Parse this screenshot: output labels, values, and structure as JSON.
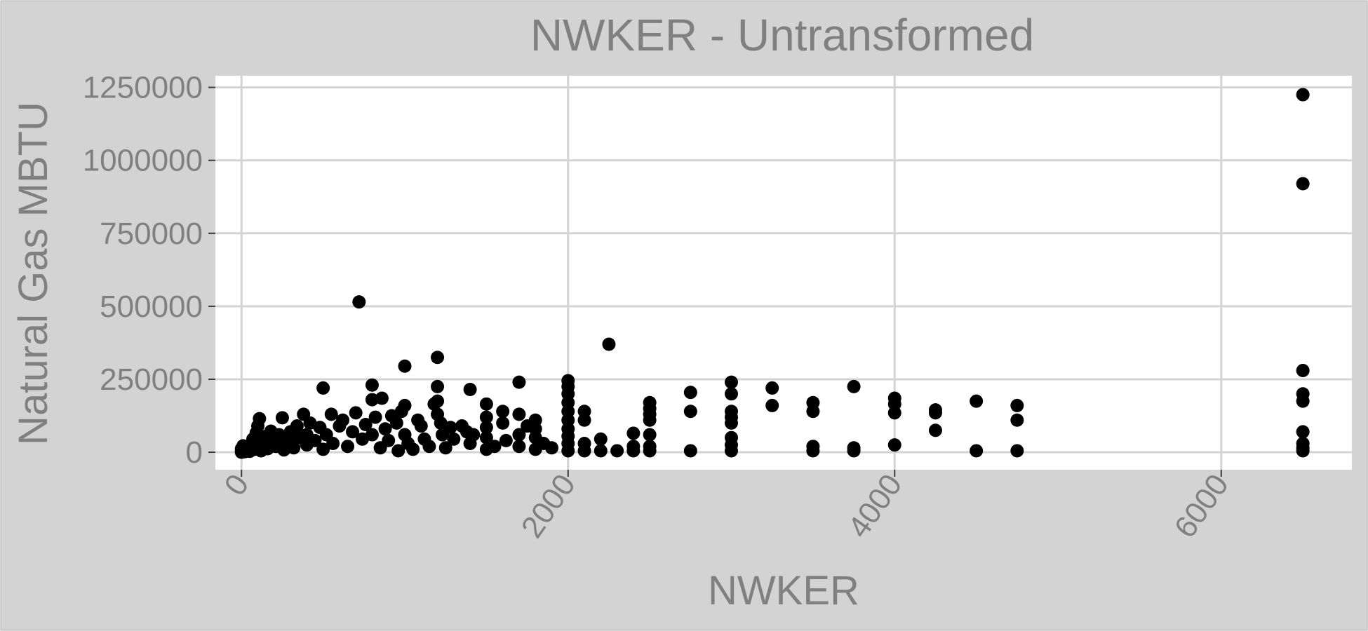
{
  "chart_data": {
    "type": "scatter",
    "title": "NWKER - Untransformed",
    "xlabel": "NWKER",
    "ylabel": "Natural Gas MBTU",
    "xlim": [
      -160,
      6800
    ],
    "ylim": [
      -60000,
      1290000
    ],
    "xticks": [
      0,
      2000,
      4000,
      6000
    ],
    "xtick_labels": [
      "0",
      "2000",
      "4000",
      "6000"
    ],
    "yticks": [
      0,
      250000,
      500000,
      750000,
      1000000,
      1250000
    ],
    "ytick_labels": [
      "0",
      "250000",
      "500000",
      "750000",
      "1000000",
      "1250000"
    ],
    "grid": true,
    "legend": "none",
    "point_color": "#000000",
    "points": [
      [
        0,
        0
      ],
      [
        0,
        5000
      ],
      [
        0,
        12000
      ],
      [
        10,
        22000
      ],
      [
        20,
        2000
      ],
      [
        30,
        8000
      ],
      [
        40,
        15000
      ],
      [
        50,
        3000
      ],
      [
        60,
        28000
      ],
      [
        70,
        45000
      ],
      [
        80,
        10000
      ],
      [
        90,
        66000
      ],
      [
        100,
        25000
      ],
      [
        100,
        90000
      ],
      [
        110,
        115000
      ],
      [
        120,
        5000
      ],
      [
        130,
        35000
      ],
      [
        150,
        55000
      ],
      [
        160,
        12000
      ],
      [
        180,
        72000
      ],
      [
        200,
        40000
      ],
      [
        210,
        20000
      ],
      [
        230,
        60000
      ],
      [
        250,
        118000
      ],
      [
        260,
        8000
      ],
      [
        280,
        35000
      ],
      [
        300,
        70000
      ],
      [
        320,
        15000
      ],
      [
        340,
        90000
      ],
      [
        350,
        50000
      ],
      [
        380,
        130000
      ],
      [
        400,
        25000
      ],
      [
        400,
        60000
      ],
      [
        420,
        100000
      ],
      [
        450,
        40000
      ],
      [
        480,
        85000
      ],
      [
        500,
        220000
      ],
      [
        500,
        10000
      ],
      [
        520,
        60000
      ],
      [
        550,
        130000
      ],
      [
        560,
        30000
      ],
      [
        600,
        90000
      ],
      [
        620,
        110000
      ],
      [
        650,
        20000
      ],
      [
        680,
        70000
      ],
      [
        700,
        135000
      ],
      [
        720,
        515000
      ],
      [
        740,
        45000
      ],
      [
        760,
        95000
      ],
      [
        800,
        230000
      ],
      [
        800,
        180000
      ],
      [
        800,
        60000
      ],
      [
        820,
        120000
      ],
      [
        850,
        15000
      ],
      [
        860,
        185000
      ],
      [
        880,
        80000
      ],
      [
        900,
        40000
      ],
      [
        920,
        125000
      ],
      [
        950,
        100000
      ],
      [
        960,
        5000
      ],
      [
        980,
        140000
      ],
      [
        1000,
        295000
      ],
      [
        1000,
        160000
      ],
      [
        1000,
        60000
      ],
      [
        1020,
        30000
      ],
      [
        1050,
        10000
      ],
      [
        1080,
        110000
      ],
      [
        1100,
        90000
      ],
      [
        1120,
        45000
      ],
      [
        1150,
        20000
      ],
      [
        1180,
        165000
      ],
      [
        1200,
        325000
      ],
      [
        1200,
        225000
      ],
      [
        1200,
        175000
      ],
      [
        1200,
        130000
      ],
      [
        1220,
        100000
      ],
      [
        1230,
        60000
      ],
      [
        1250,
        15000
      ],
      [
        1280,
        85000
      ],
      [
        1300,
        45000
      ],
      [
        1350,
        90000
      ],
      [
        1380,
        70000
      ],
      [
        1400,
        215000
      ],
      [
        1400,
        30000
      ],
      [
        1420,
        60000
      ],
      [
        1500,
        165000
      ],
      [
        1500,
        120000
      ],
      [
        1500,
        85000
      ],
      [
        1500,
        50000
      ],
      [
        1500,
        10000
      ],
      [
        1550,
        20000
      ],
      [
        1600,
        140000
      ],
      [
        1600,
        100000
      ],
      [
        1620,
        40000
      ],
      [
        1700,
        240000
      ],
      [
        1700,
        130000
      ],
      [
        1700,
        60000
      ],
      [
        1700,
        20000
      ],
      [
        1750,
        90000
      ],
      [
        1800,
        110000
      ],
      [
        1800,
        80000
      ],
      [
        1800,
        50000
      ],
      [
        1800,
        10000
      ],
      [
        1850,
        30000
      ],
      [
        1900,
        15000
      ],
      [
        2000,
        245000
      ],
      [
        2000,
        225000
      ],
      [
        2000,
        200000
      ],
      [
        2000,
        170000
      ],
      [
        2000,
        140000
      ],
      [
        2000,
        110000
      ],
      [
        2000,
        80000
      ],
      [
        2000,
        55000
      ],
      [
        2000,
        30000
      ],
      [
        2000,
        5000
      ],
      [
        2100,
        140000
      ],
      [
        2100,
        110000
      ],
      [
        2100,
        30000
      ],
      [
        2100,
        5000
      ],
      [
        2200,
        45000
      ],
      [
        2200,
        5000
      ],
      [
        2250,
        370000
      ],
      [
        2300,
        5000
      ],
      [
        2400,
        65000
      ],
      [
        2400,
        20000
      ],
      [
        2400,
        5000
      ],
      [
        2500,
        170000
      ],
      [
        2500,
        150000
      ],
      [
        2500,
        130000
      ],
      [
        2500,
        110000
      ],
      [
        2500,
        60000
      ],
      [
        2500,
        20000
      ],
      [
        2500,
        5000
      ],
      [
        2750,
        205000
      ],
      [
        2750,
        140000
      ],
      [
        2750,
        5000
      ],
      [
        3000,
        240000
      ],
      [
        3000,
        200000
      ],
      [
        3000,
        140000
      ],
      [
        3000,
        120000
      ],
      [
        3000,
        100000
      ],
      [
        3000,
        50000
      ],
      [
        3000,
        25000
      ],
      [
        3000,
        5000
      ],
      [
        3250,
        220000
      ],
      [
        3250,
        160000
      ],
      [
        3500,
        170000
      ],
      [
        3500,
        140000
      ],
      [
        3500,
        20000
      ],
      [
        3500,
        5000
      ],
      [
        3750,
        225000
      ],
      [
        3750,
        15000
      ],
      [
        3750,
        5000
      ],
      [
        4000,
        185000
      ],
      [
        4000,
        165000
      ],
      [
        4000,
        135000
      ],
      [
        4000,
        25000
      ],
      [
        4250,
        145000
      ],
      [
        4250,
        135000
      ],
      [
        4250,
        75000
      ],
      [
        4500,
        175000
      ],
      [
        4500,
        5000
      ],
      [
        4750,
        160000
      ],
      [
        4750,
        110000
      ],
      [
        4750,
        5000
      ],
      [
        6500,
        1225000
      ],
      [
        6500,
        920000
      ],
      [
        6500,
        280000
      ],
      [
        6500,
        200000
      ],
      [
        6500,
        175000
      ],
      [
        6500,
        70000
      ],
      [
        6500,
        30000
      ],
      [
        6500,
        15000
      ],
      [
        6500,
        5000
      ]
    ]
  }
}
